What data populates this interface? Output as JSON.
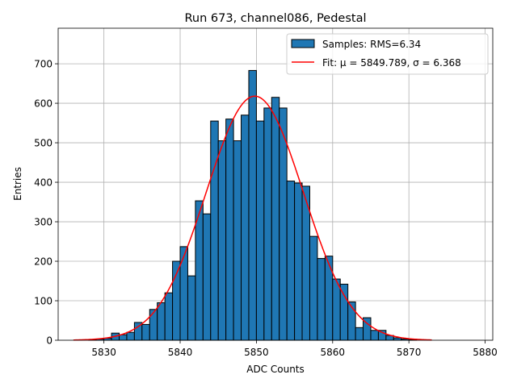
{
  "chart_data": {
    "type": "bar",
    "title": "Run 673, channel086, Pedestal",
    "xlabel": "ADC Counts",
    "ylabel": "Entries",
    "xlim": [
      5824,
      5881
    ],
    "ylim": [
      0,
      790
    ],
    "grid": true,
    "xticks": [
      5830,
      5840,
      5850,
      5860,
      5870,
      5880
    ],
    "yticks": [
      0,
      100,
      200,
      300,
      400,
      500,
      600,
      700
    ],
    "legend_position": "top-right",
    "bin_width": 1,
    "histogram": {
      "name": "Samples: RMS=6.34",
      "bin_starts": [
        5828,
        5829,
        5830,
        5831,
        5832,
        5833,
        5834,
        5835,
        5836,
        5837,
        5838,
        5839,
        5840,
        5841,
        5842,
        5843,
        5844,
        5845,
        5846,
        5847,
        5848,
        5849,
        5850,
        5851,
        5852,
        5853,
        5854,
        5855,
        5856,
        5857,
        5858,
        5859,
        5860,
        5861,
        5862,
        5863,
        5864,
        5865,
        5866,
        5867,
        5868,
        5869,
        5870
      ],
      "values": [
        2,
        3,
        5,
        18,
        14,
        20,
        45,
        40,
        78,
        95,
        120,
        200,
        237,
        163,
        353,
        320,
        555,
        505,
        560,
        505,
        570,
        683,
        555,
        588,
        615,
        588,
        403,
        398,
        390,
        263,
        207,
        213,
        155,
        142,
        97,
        32,
        57,
        25,
        25,
        12,
        6,
        3,
        1
      ]
    },
    "fit": {
      "name": "Fit: μ = 5849.789, σ = 6.368",
      "mu": 5849.789,
      "sigma": 6.368,
      "amplitude": 618,
      "x_range": [
        5826,
        5873
      ]
    }
  }
}
